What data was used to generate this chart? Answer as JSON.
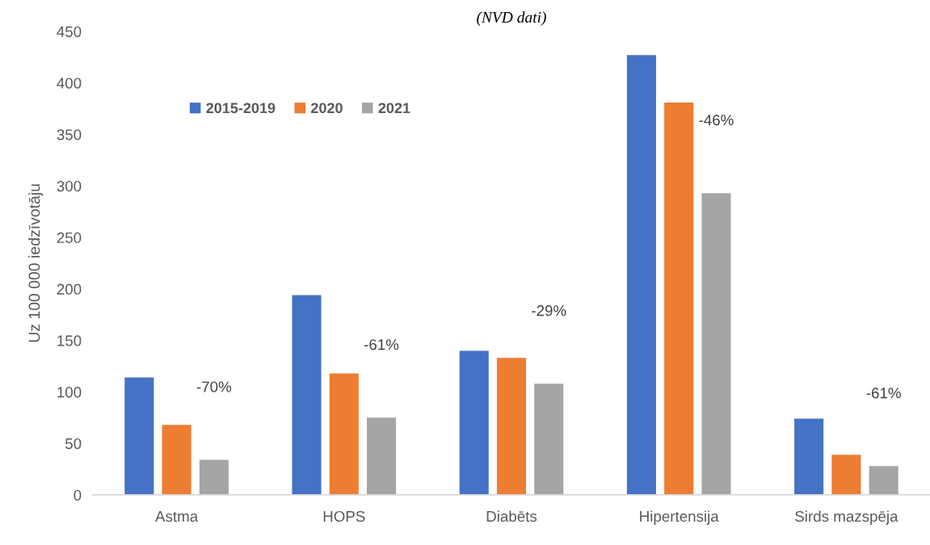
{
  "chart_data": {
    "type": "bar",
    "title": "(NVD dati)",
    "ylabel": "Uz 100 000 iedzīvotāju",
    "categories": [
      "Astma",
      "HOPS",
      "Diabēts",
      "Hipertensija",
      "Sirds mazspēja"
    ],
    "series": [
      {
        "name": "2015-2019",
        "color": "#4472c4",
        "values": [
          114,
          194,
          140,
          427,
          74
        ]
      },
      {
        "name": "2020",
        "color": "#ed7d31",
        "values": [
          68,
          118,
          133,
          381,
          39
        ]
      },
      {
        "name": "2021",
        "color": "#a5a5a5",
        "values": [
          34,
          75,
          108,
          293,
          28
        ]
      }
    ],
    "ylim": [
      0,
      450
    ],
    "yticks": [
      0,
      50,
      100,
      150,
      200,
      250,
      300,
      350,
      400,
      450
    ],
    "legend": "top left",
    "annotations": [
      "-70%",
      "-61%",
      "-29%",
      "-46%",
      "-61%"
    ]
  }
}
